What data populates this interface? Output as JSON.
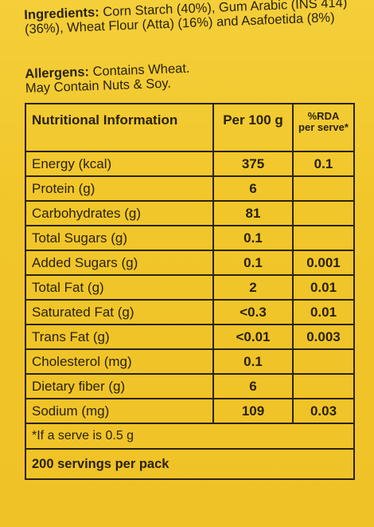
{
  "ingredients": {
    "label": "Ingredients:",
    "text": " Corn Starch (40%), Gum Arabic (INS 414) (36%), Wheat Flour (Atta) (16%) and Asafoetida (8%)"
  },
  "allergens": {
    "label": "Allergens:",
    "text": " Contains Wheat.",
    "may_contain": "May Contain Nuts & Soy."
  },
  "table": {
    "headers": {
      "name": "Nutritional Information",
      "per100": "Per 100 g",
      "rda_line1": "%RDA",
      "rda_line2": "per serve*"
    },
    "rows": [
      {
        "name": "Energy (kcal)",
        "per100": "375",
        "rda": "0.1"
      },
      {
        "name": "Protein (g)",
        "per100": "6",
        "rda": ""
      },
      {
        "name": "Carbohydrates (g)",
        "per100": "81",
        "rda": ""
      },
      {
        "name": "Total Sugars (g)",
        "per100": "0.1",
        "rda": ""
      },
      {
        "name": "Added Sugars (g)",
        "per100": "0.1",
        "rda": "0.001"
      },
      {
        "name": "Total Fat (g)",
        "per100": "2",
        "rda": "0.01"
      },
      {
        "name": "Saturated Fat (g)",
        "per100": "<0.3",
        "rda": "0.01"
      },
      {
        "name": "Trans Fat (g)",
        "per100": "<0.01",
        "rda": "0.003"
      },
      {
        "name": "Cholesterol (mg)",
        "per100": "0.1",
        "rda": ""
      },
      {
        "name": "Dietary fiber (g)",
        "per100": "6",
        "rda": ""
      },
      {
        "name": "Sodium (mg)",
        "per100": "109",
        "rda": "0.03"
      }
    ],
    "footnote": "*If a serve is 0.5 g",
    "servings": "200 servings per pack"
  }
}
